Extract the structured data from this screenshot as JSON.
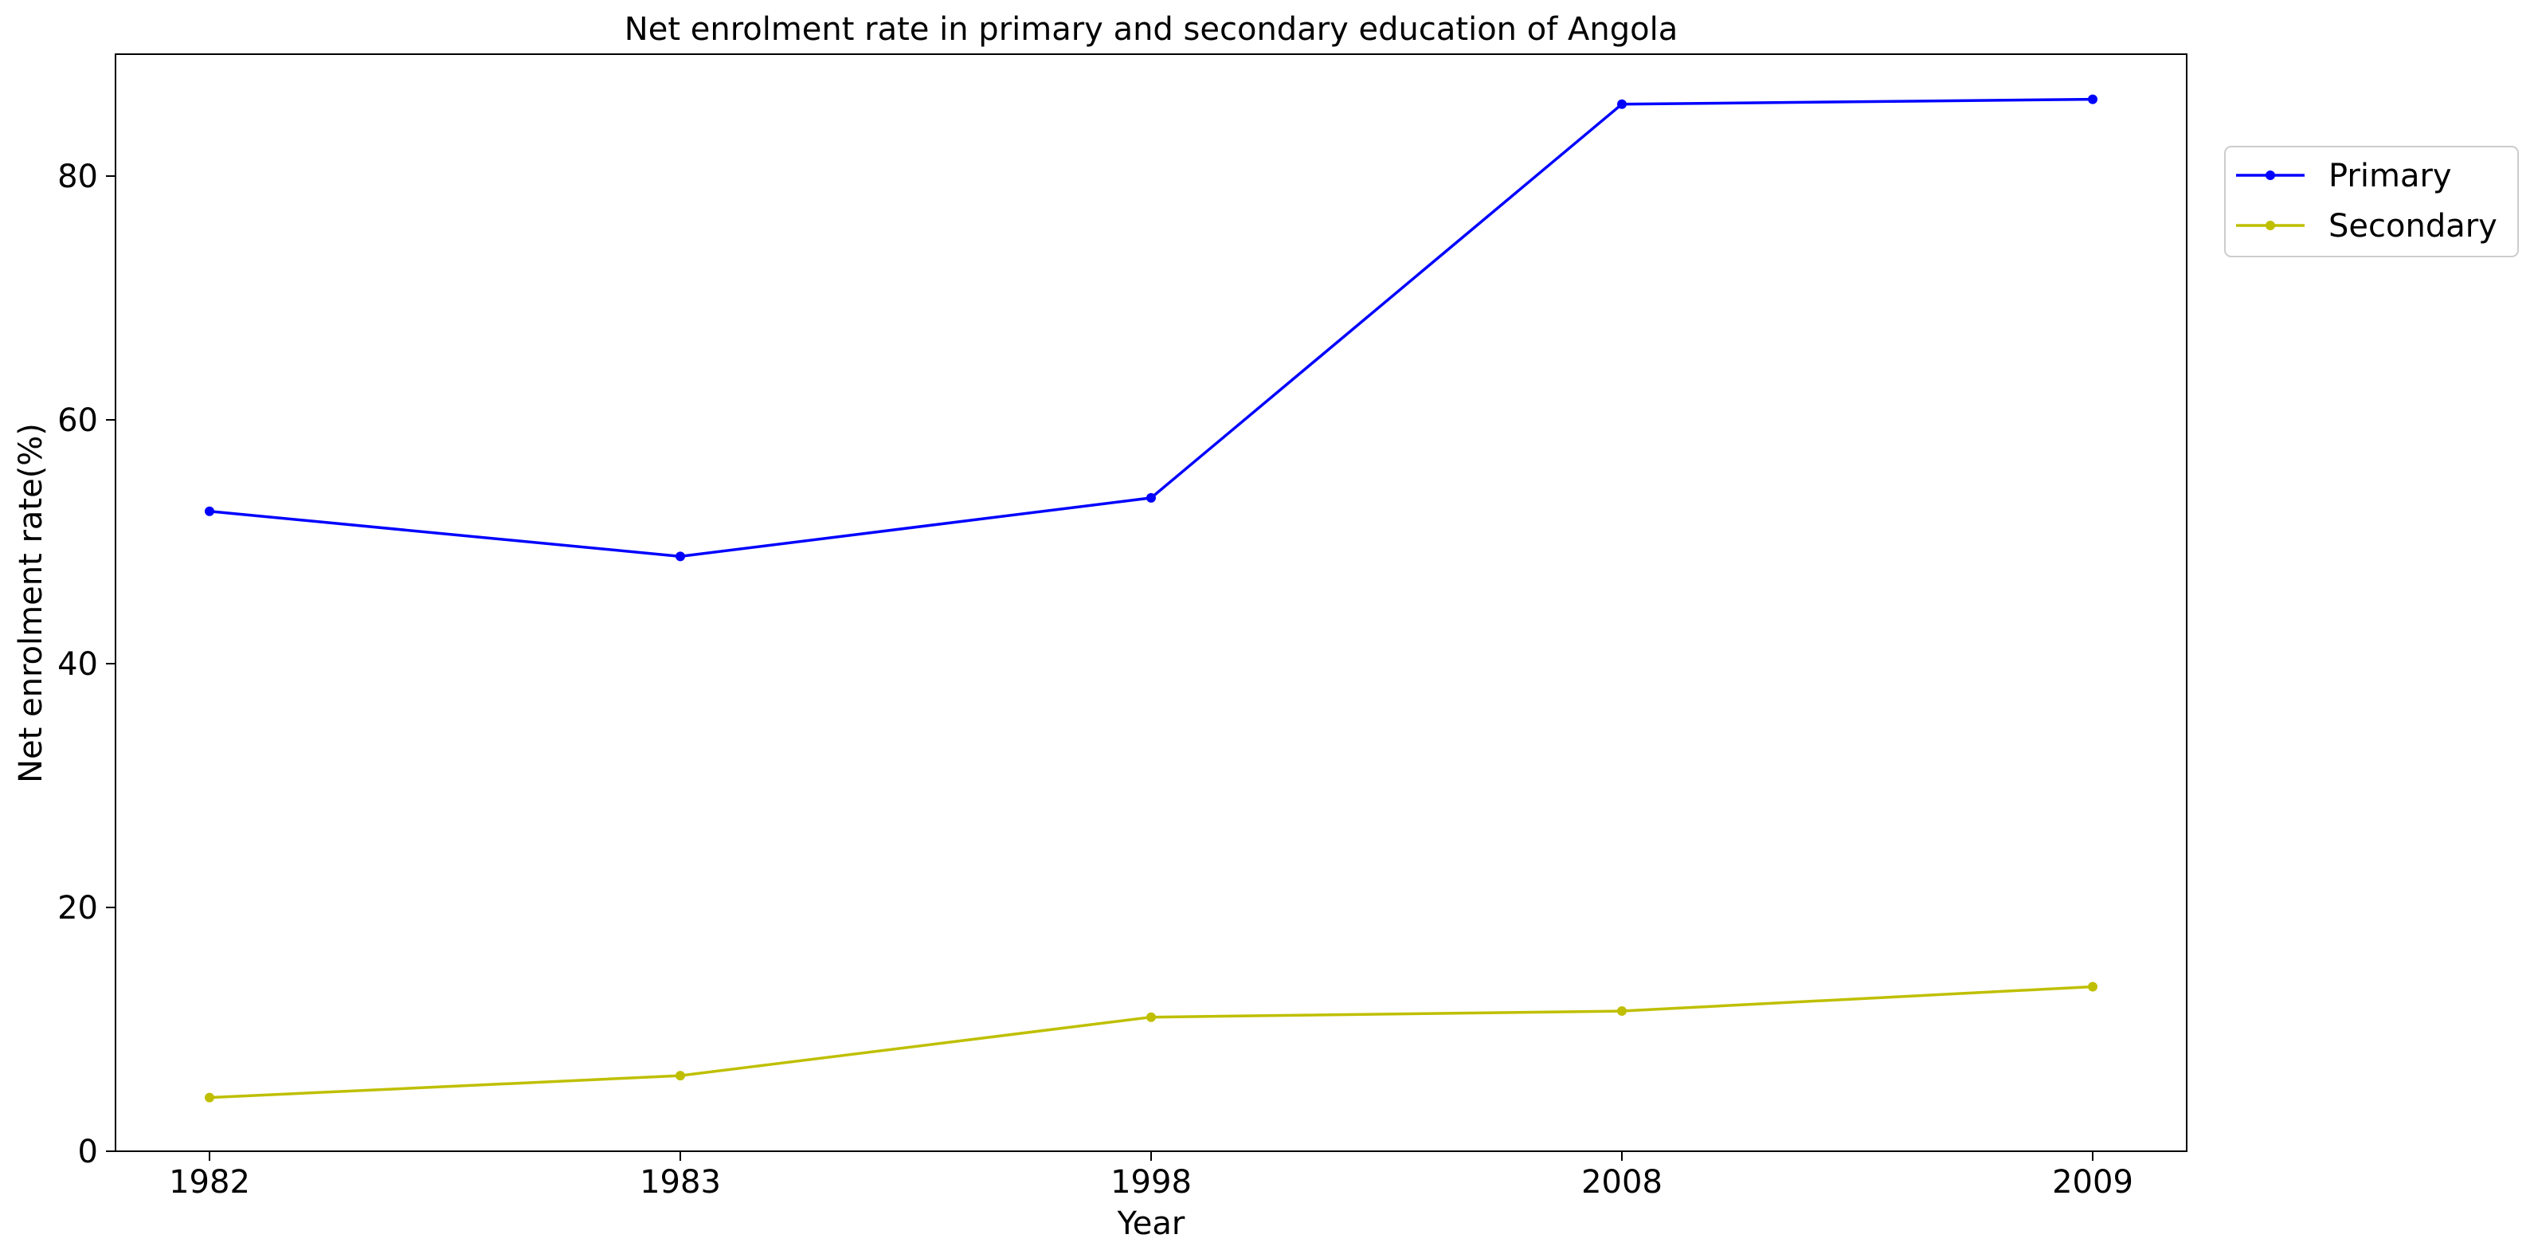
{
  "chart_data": {
    "type": "line",
    "title": "Net enrolment rate in primary and secondary education of Angola",
    "xlabel": "Year",
    "ylabel": "Net enrolment rate(%)",
    "categories": [
      "1982",
      "1983",
      "1998",
      "2008",
      "2009"
    ],
    "ylim": [
      0,
      90
    ],
    "yticks": [
      0,
      20,
      40,
      60,
      80
    ],
    "grid": false,
    "legend_position": "upper right, outside plot area",
    "series": [
      {
        "name": "Primary",
        "color": "#0000ff",
        "values": [
          52.5,
          48.8,
          53.6,
          85.9,
          86.3
        ]
      },
      {
        "name": "Secondary",
        "color": "#bfbf00",
        "values": [
          4.4,
          6.2,
          11.0,
          11.5,
          13.5
        ]
      }
    ]
  }
}
